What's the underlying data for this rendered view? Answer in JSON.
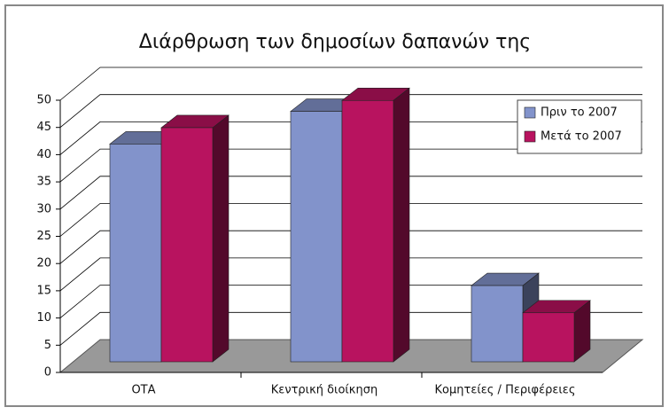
{
  "chart_data": {
    "type": "bar3d",
    "title": "Διάρθρωση των δημοσίων δαπανών της",
    "categories": [
      "ΟΤΑ",
      "Κεντρική διοίκηση",
      "Κομητείες / Περιφέρειες"
    ],
    "series": [
      {
        "name": "Πριν το 2007",
        "color": "#8293cb",
        "values": [
          40,
          46,
          14
        ]
      },
      {
        "name": "Μετά το 2007",
        "color": "#b8135f",
        "values": [
          43,
          48,
          9
        ]
      }
    ],
    "ylim": [
      0,
      50
    ],
    "yticks": [
      0,
      5,
      10,
      15,
      20,
      25,
      30,
      35,
      40,
      45,
      50
    ],
    "grid": true,
    "legend": "right"
  }
}
